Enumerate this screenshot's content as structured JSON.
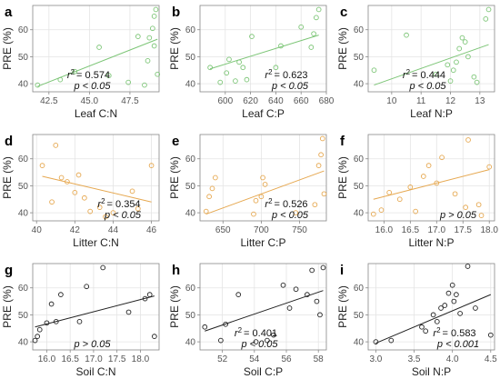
{
  "colors": {
    "leaf": "#7cc576",
    "litter": "#e6a850",
    "soil": "#222222",
    "grid": "#e4e4e4",
    "frame": "#888888",
    "tick": "#555555",
    "label": "#222222"
  },
  "chart_data": [
    {
      "panel": "a",
      "group": "leaf",
      "type": "scatter",
      "xlabel": "Leaf C:N",
      "ylabel": "PRE (%)",
      "xlim": [
        41.5,
        49.3
      ],
      "ylim": [
        37,
        69
      ],
      "xticks": [
        42.5,
        45.0,
        47.5
      ],
      "xtick_labels": [
        "42.5",
        "45.0",
        "47.5"
      ],
      "yticks": [
        40,
        50,
        60
      ],
      "ytick_labels": [
        "40",
        "50",
        "60"
      ],
      "x": [
        41.8,
        43.2,
        44.1,
        45.6,
        46.2,
        47.4,
        48.0,
        48.4,
        48.6,
        48.7,
        48.9,
        49.0,
        49.0,
        49.1,
        49.2
      ],
      "y": [
        39.5,
        41.5,
        44.5,
        53.5,
        43.0,
        40.5,
        57.5,
        39.5,
        48.5,
        57.0,
        60.5,
        54.0,
        65.0,
        67.5,
        43.5
      ],
      "fit": {
        "x": [
          41.8,
          49.2
        ],
        "y": [
          39.0,
          56.5
        ]
      },
      "r2_prefix": "r",
      "r2_value": "= 0.574",
      "p_text": "p < 0.05",
      "stats_pos": "bottom-middle"
    },
    {
      "panel": "b",
      "group": "leaf",
      "type": "scatter",
      "xlabel": "Leaf C:P",
      "ylabel": "PRE (%)",
      "xlim": [
        580,
        680
      ],
      "ylim": [
        37,
        69
      ],
      "xticks": [
        600,
        620,
        640,
        660,
        680
      ],
      "xtick_labels": [
        "600",
        "620",
        "640",
        "660",
        "680"
      ],
      "yticks": [
        40,
        50,
        60
      ],
      "ytick_labels": [
        "40",
        "50",
        "60"
      ],
      "x": [
        588,
        596,
        601,
        603,
        608,
        611,
        614,
        617,
        621,
        640,
        644,
        660,
        668,
        670,
        672,
        674
      ],
      "y": [
        46.0,
        40.5,
        44.0,
        49.0,
        41.0,
        48.0,
        46.0,
        41.5,
        57.5,
        46.0,
        54.0,
        61.0,
        53.5,
        58.5,
        64.5,
        67.5
      ],
      "fit": {
        "x": [
          588,
          674
        ],
        "y": [
          45.5,
          58.0
        ]
      },
      "r2_prefix": "r",
      "r2_value": "= 0.623",
      "p_text": "p < 0.05",
      "stats_pos": "bottom-right"
    },
    {
      "panel": "c",
      "group": "leaf",
      "type": "scatter",
      "xlabel": "Leaf N:P",
      "ylabel": "PRE (%)",
      "xlim": [
        9.2,
        13.5
      ],
      "ylim": [
        37,
        69
      ],
      "xticks": [
        10,
        11,
        12,
        13
      ],
      "xtick_labels": [
        "10",
        "11",
        "12",
        "13"
      ],
      "x": [
        9.4,
        10.5,
        11.5,
        11.9,
        12.0,
        12.1,
        12.2,
        12.3,
        12.4,
        12.5,
        12.6,
        12.8,
        12.9,
        13.2,
        13.3
      ],
      "y": [
        45.0,
        58.0,
        43.5,
        47.0,
        41.0,
        45.0,
        48.0,
        53.0,
        57.0,
        55.5,
        50.0,
        42.5,
        40.5,
        64.0,
        67.5
      ],
      "yticks": [
        40,
        50,
        60
      ],
      "ytick_labels": [
        "40",
        "50",
        "60"
      ],
      "fit": {
        "x": [
          9.4,
          13.3
        ],
        "y": [
          39.5,
          54.5
        ]
      },
      "r2_prefix": "r",
      "r2_value": "= 0.444",
      "p_text": "p < 0.05",
      "stats_pos": "bottom-middle"
    },
    {
      "panel": "d",
      "group": "litter",
      "type": "scatter",
      "xlabel": "Litter C:N",
      "ylabel": "PRE (%)",
      "xlim": [
        39.8,
        46.4
      ],
      "ylim": [
        37,
        69
      ],
      "xticks": [
        40,
        42,
        44,
        46
      ],
      "xtick_labels": [
        "40",
        "42",
        "44",
        "46"
      ],
      "yticks": [
        40,
        50,
        60
      ],
      "ytick_labels": [
        "40",
        "50",
        "60"
      ],
      "x": [
        40.3,
        40.8,
        41.0,
        41.3,
        41.6,
        42.0,
        42.2,
        42.5,
        42.8,
        43.3,
        43.6,
        44.0,
        45.0,
        45.3,
        46.0
      ],
      "y": [
        57.5,
        44.0,
        65.0,
        53.0,
        51.5,
        47.5,
        54.0,
        45.5,
        40.5,
        42.0,
        38.5,
        40.0,
        48.0,
        41.5,
        57.5
      ],
      "fit": {
        "x": [
          40.3,
          46.0
        ],
        "y": [
          53.5,
          44.0
        ]
      },
      "r2_prefix": "r",
      "r2_value": "= 0.354",
      "p_text": "p < 0.05",
      "stats_pos": "bottom-right"
    },
    {
      "panel": "e",
      "group": "litter",
      "type": "scatter",
      "xlabel": "Litter C:P",
      "ylabel": "PRE (%)",
      "xlim": [
        620,
        785
      ],
      "ylim": [
        37,
        69
      ],
      "xticks": [
        650,
        700,
        750
      ],
      "xtick_labels": [
        "650",
        "700",
        "750"
      ],
      "yticks": [
        40,
        50,
        60
      ],
      "ytick_labels": [
        "40",
        "50",
        "60"
      ],
      "x": [
        628,
        632,
        636,
        640,
        690,
        693,
        700,
        702,
        705,
        745,
        770,
        775,
        778,
        780,
        782
      ],
      "y": [
        40.5,
        46.0,
        49.0,
        53.0,
        39.5,
        44.5,
        46.0,
        53.0,
        50.5,
        40.0,
        43.0,
        57.5,
        61.5,
        67.5,
        47.0
      ],
      "fit": {
        "x": [
          628,
          782
        ],
        "y": [
          39.5,
          55.5
        ]
      },
      "r2_prefix": "r",
      "r2_value": "= 0.526",
      "p_text": "p < 0.05",
      "stats_pos": "bottom-right"
    },
    {
      "panel": "f",
      "group": "litter",
      "type": "scatter",
      "xlabel": "Litter N:P",
      "ylabel": "PRE (%)",
      "xlim": [
        15.7,
        18.1
      ],
      "ylim": [
        37,
        69
      ],
      "xticks": [
        16.0,
        16.5,
        17.0,
        17.5,
        18.0
      ],
      "xtick_labels": [
        "16.0",
        "16.5",
        "17.0",
        "17.5",
        "18.0"
      ],
      "yticks": [
        40,
        50,
        60
      ],
      "ytick_labels": [
        "40",
        "50",
        "60"
      ],
      "x": [
        15.8,
        15.95,
        16.1,
        16.3,
        16.5,
        16.6,
        16.75,
        16.85,
        17.0,
        17.1,
        17.35,
        17.55,
        17.6,
        17.8,
        17.85,
        18.0
      ],
      "y": [
        39.5,
        41.0,
        47.5,
        45.0,
        49.5,
        40.5,
        53.5,
        57.5,
        51.0,
        60.5,
        47.0,
        42.0,
        67.0,
        43.0,
        39.0,
        57.0
      ],
      "fit": {
        "x": [
          15.8,
          18.0
        ],
        "y": [
          45.0,
          56.0
        ]
      },
      "r2_prefix": "",
      "r2_value": "",
      "p_text": "p > 0.05",
      "stats_pos": "bottom-right"
    },
    {
      "panel": "g",
      "group": "soil",
      "type": "scatter",
      "xlabel": "Soil C:N",
      "ylabel": "PRE (%)",
      "xlim": [
        15.7,
        18.4
      ],
      "ylim": [
        37,
        69
      ],
      "xticks": [
        16.0,
        16.5,
        17.0,
        17.5,
        18.0
      ],
      "xtick_labels": [
        "16.0",
        "16.5",
        "17.0",
        "17.5",
        "18.0"
      ],
      "yticks": [
        40,
        50,
        60
      ],
      "ytick_labels": [
        "40",
        "50",
        "60"
      ],
      "x": [
        15.75,
        15.8,
        15.85,
        16.0,
        16.1,
        16.2,
        16.3,
        16.7,
        16.85,
        17.2,
        17.75,
        18.1,
        18.2,
        18.3
      ],
      "y": [
        40.5,
        42.0,
        44.5,
        47.0,
        54.0,
        47.5,
        57.5,
        47.5,
        60.5,
        67.5,
        51.0,
        56.0,
        57.5,
        42.0
      ],
      "fit": {
        "x": [
          15.75,
          18.3
        ],
        "y": [
          45.5,
          57.0
        ]
      },
      "r2_prefix": "",
      "r2_value": "",
      "p_text": "p > 0.05",
      "stats_pos": "bottom-middle"
    },
    {
      "panel": "h",
      "group": "soil",
      "type": "scatter",
      "xlabel": "Soil C:P",
      "ylabel": "PRE (%)",
      "xlim": [
        50.6,
        58.5
      ],
      "ylim": [
        37,
        69
      ],
      "xticks": [
        52,
        54,
        56,
        58
      ],
      "xtick_labels": [
        "52",
        "54",
        "56",
        "58"
      ],
      "yticks": [
        40,
        50,
        60
      ],
      "ytick_labels": [
        "40",
        "50",
        "60"
      ],
      "x": [
        50.9,
        51.9,
        52.2,
        53.0,
        54.1,
        54.8,
        55.2,
        55.8,
        56.2,
        56.6,
        57.3,
        57.6,
        57.9,
        58.1,
        58.3
      ],
      "y": [
        45.5,
        40.5,
        46.5,
        57.5,
        40.0,
        40.5,
        42.5,
        61.0,
        52.5,
        59.5,
        57.5,
        66.5,
        55.0,
        50.0,
        67.5
      ],
      "fit": {
        "x": [
          50.9,
          58.3
        ],
        "y": [
          44.0,
          59.0
        ]
      },
      "r2_prefix": "r",
      "r2_value": "= 0.401",
      "p_text": "p < 0.05",
      "stats_pos": "bottom-middle"
    },
    {
      "panel": "i",
      "group": "soil",
      "type": "scatter",
      "xlabel": "Soil N:P",
      "ylabel": "PRE (%)",
      "xlim": [
        2.9,
        4.55
      ],
      "ylim": [
        37,
        69
      ],
      "xticks": [
        3.0,
        3.5,
        4.0,
        4.5
      ],
      "xtick_labels": [
        "3.0",
        "3.5",
        "4.0",
        "4.5"
      ],
      "yticks": [
        40,
        50,
        60
      ],
      "ytick_labels": [
        "40",
        "50",
        "60"
      ],
      "x": [
        3.0,
        3.2,
        3.6,
        3.65,
        3.75,
        3.8,
        3.85,
        3.9,
        3.95,
        4.0,
        4.02,
        4.05,
        4.1,
        4.2,
        4.3,
        4.5
      ],
      "y": [
        40.0,
        40.5,
        45.5,
        44.0,
        50.0,
        47.5,
        52.5,
        53.5,
        58.0,
        61.0,
        55.0,
        57.5,
        50.5,
        68.0,
        52.5,
        42.5
      ],
      "fit": {
        "x": [
          3.0,
          4.5
        ],
        "y": [
          39.5,
          57.5
        ]
      },
      "r2_prefix": "r",
      "r2_value": "= 0.583",
      "p_text": "p < 0.001",
      "stats_pos": "bottom-right"
    }
  ]
}
